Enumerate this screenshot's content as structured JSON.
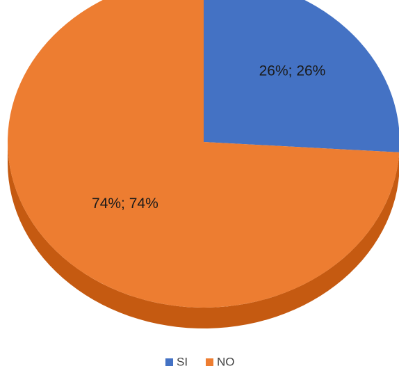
{
  "chart_data": {
    "type": "pie",
    "style": "3d",
    "start_angle_deg": 90,
    "direction": "clockwise",
    "slices": [
      {
        "name": "SI",
        "value": 26,
        "label": "26%; 26%",
        "color": "#4472C4",
        "side_color": "#2F5597"
      },
      {
        "name": "NO",
        "value": 74,
        "label": "74%; 74%",
        "color": "#ED7D31",
        "side_color": "#C55A11"
      }
    ],
    "legend": {
      "position": "bottom",
      "entries": [
        "SI",
        "NO"
      ]
    }
  }
}
